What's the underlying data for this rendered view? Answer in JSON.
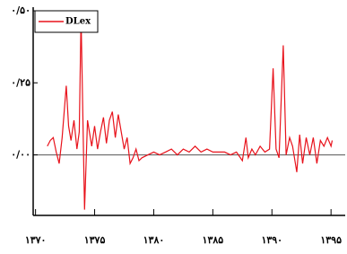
{
  "chart_data": {
    "type": "line",
    "x": [
      1371,
      1371.25,
      1371.5,
      1371.75,
      1372,
      1372.25,
      1372.6,
      1372.8,
      1373,
      1373.25,
      1373.5,
      1373.7,
      1373.85,
      1374.15,
      1374.4,
      1374.75,
      1375,
      1375.25,
      1375.5,
      1375.75,
      1376,
      1376.25,
      1376.5,
      1376.75,
      1377,
      1377.25,
      1377.5,
      1377.75,
      1378,
      1378.25,
      1378.5,
      1378.75,
      1379,
      1379.5,
      1380,
      1380.5,
      1381,
      1381.5,
      1382,
      1382.5,
      1383,
      1383.5,
      1384,
      1384.5,
      1385,
      1385.5,
      1386,
      1386.5,
      1387,
      1387.5,
      1387.8,
      1388,
      1388.3,
      1388.6,
      1389,
      1389.4,
      1389.8,
      1390.1,
      1390.35,
      1390.6,
      1390.96,
      1391.2,
      1391.5,
      1391.75,
      1392.1,
      1392.35,
      1392.6,
      1392.9,
      1393.2,
      1393.5,
      1393.8,
      1394.1,
      1394.4,
      1394.7,
      1395,
      1395.1
    ],
    "series": [
      {
        "name": "DLex",
        "color": "#e8121b",
        "values": [
          0.03,
          0.05,
          0.06,
          0.01,
          -0.03,
          0.06,
          0.24,
          0.1,
          0.05,
          0.12,
          0.02,
          0.08,
          0.48,
          -0.19,
          0.12,
          0.03,
          0.1,
          0.02,
          0.08,
          0.13,
          0.04,
          0.12,
          0.15,
          0.06,
          0.14,
          0.08,
          0.02,
          0.06,
          -0.03,
          -0.01,
          0.02,
          -0.02,
          -0.01,
          0.0,
          0.01,
          0.0,
          0.01,
          0.02,
          0.0,
          0.02,
          0.01,
          0.03,
          0.01,
          0.02,
          0.01,
          0.01,
          0.01,
          0.0,
          0.01,
          -0.02,
          0.06,
          -0.01,
          0.02,
          0.0,
          0.03,
          0.01,
          0.02,
          0.3,
          0.02,
          -0.01,
          0.38,
          0.0,
          0.06,
          0.03,
          -0.06,
          0.07,
          -0.03,
          0.06,
          0.0,
          0.06,
          -0.03,
          0.05,
          0.03,
          0.06,
          0.03,
          0.05
        ]
      }
    ],
    "xlim": [
      1369.8,
      1396.2
    ],
    "ylim": [
      -0.21,
      0.5
    ],
    "xticks": [
      {
        "value": 1370,
        "label": "۱۳۷۰"
      },
      {
        "value": 1375,
        "label": "۱۳۷۵"
      },
      {
        "value": 1380,
        "label": "۱۳۸۰"
      },
      {
        "value": 1385,
        "label": "۱۳۸۵"
      },
      {
        "value": 1390,
        "label": "۱۳۹۰"
      },
      {
        "value": 1395,
        "label": "۱۳۹۵"
      }
    ],
    "yticks": [
      {
        "value": 0,
        "label": "۰/۰۰"
      },
      {
        "value": 0.25,
        "label": "۰/۲۵"
      },
      {
        "value": 0.5,
        "label": "۰/۵۰"
      }
    ],
    "zero_line": true,
    "legend": "top-left"
  }
}
